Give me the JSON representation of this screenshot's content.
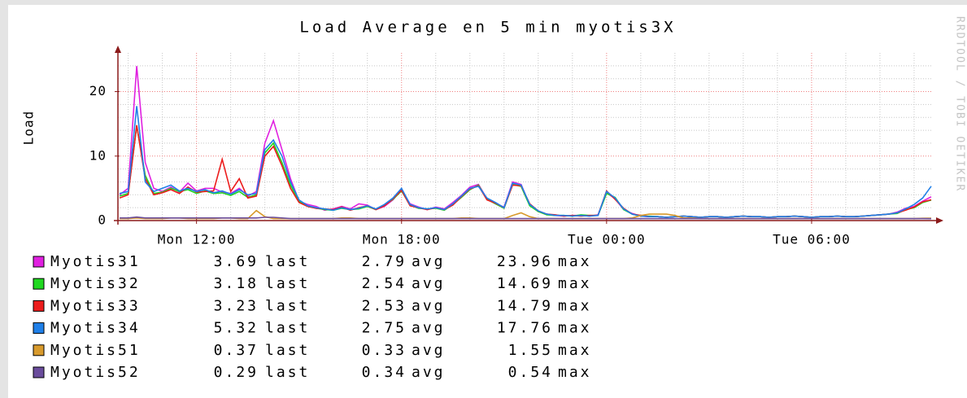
{
  "chart_data": {
    "type": "line",
    "title": "Load Average en 5 min myotis3X",
    "y_label": "Load",
    "watermark": "RRDTOOL / TOBI OETIKER",
    "xlim": [
      9.7,
      33.5
    ],
    "xticks": [
      {
        "value": 12,
        "label": "Mon 12:00"
      },
      {
        "value": 18,
        "label": "Mon 18:00"
      },
      {
        "value": 24,
        "label": "Tue 00:00"
      },
      {
        "value": 30,
        "label": "Tue 06:00"
      }
    ],
    "minor_xticks": [
      10,
      11,
      13,
      14,
      15,
      16,
      17,
      19,
      20,
      21,
      22,
      23,
      25,
      26,
      27,
      28,
      29,
      31,
      32,
      33
    ],
    "ylim": [
      0,
      26
    ],
    "yticks": [
      0,
      10,
      20
    ],
    "minor_yticks": [
      2,
      4,
      6,
      8,
      12,
      14,
      16,
      18,
      22,
      24
    ],
    "grid": true,
    "stat_labels": [
      "last",
      "avg",
      "max"
    ],
    "x": [
      9.75,
      10,
      10.25,
      10.5,
      10.75,
      11,
      11.25,
      11.5,
      11.75,
      12,
      12.25,
      12.5,
      12.75,
      13,
      13.25,
      13.5,
      13.75,
      14,
      14.25,
      14.5,
      14.75,
      15,
      15.25,
      15.5,
      15.75,
      16,
      16.25,
      16.5,
      16.75,
      17,
      17.25,
      17.5,
      17.75,
      18,
      18.25,
      18.5,
      18.75,
      19,
      19.25,
      19.5,
      19.75,
      20,
      20.25,
      20.5,
      20.75,
      21,
      21.25,
      21.5,
      21.75,
      22,
      22.25,
      22.5,
      22.75,
      23,
      23.25,
      23.5,
      23.75,
      24,
      24.25,
      24.5,
      24.75,
      25,
      25.25,
      25.5,
      25.75,
      26,
      26.25,
      26.5,
      26.75,
      27,
      27.25,
      27.5,
      27.75,
      28,
      28.25,
      28.5,
      28.75,
      29,
      29.25,
      29.5,
      29.75,
      30,
      30.25,
      30.5,
      30.75,
      31,
      31.25,
      31.5,
      31.75,
      32,
      32.25,
      32.5,
      32.75,
      33,
      33.25,
      33.5
    ],
    "series": [
      {
        "name": "Myotis31",
        "color": "#e020e0",
        "last": 3.69,
        "avg": 2.79,
        "max": 23.96,
        "values": [
          4,
          5,
          23.96,
          9,
          5,
          4.5,
          5.2,
          4.4,
          5.8,
          4.6,
          5,
          5,
          4.4,
          4.2,
          5,
          3.8,
          4.5,
          12,
          15.5,
          11,
          6.5,
          3,
          2.5,
          2.2,
          1.6,
          1.8,
          2.2,
          1.8,
          2.6,
          2.4,
          1.7,
          2.2,
          3.2,
          4.8,
          2.6,
          2.1,
          1.7,
          2.1,
          1.8,
          2.8,
          3.9,
          5.2,
          5.6,
          3.4,
          2.6,
          2.1,
          6,
          5.6,
          2.4,
          1.4,
          1,
          0.8,
          0.7,
          0.8,
          0.8,
          0.7,
          0.9,
          4.3,
          3.4,
          1.7,
          1.1,
          0.7,
          0.6,
          0.6,
          0.5,
          0.6,
          0.7,
          0.6,
          0.5,
          0.6,
          0.6,
          0.5,
          0.6,
          0.7,
          0.6,
          0.6,
          0.5,
          0.6,
          0.6,
          0.7,
          0.6,
          0.5,
          0.6,
          0.6,
          0.7,
          0.6,
          0.6,
          0.7,
          0.8,
          0.9,
          1,
          1.3,
          1.9,
          2.2,
          3,
          3.69
        ]
      },
      {
        "name": "Myotis32",
        "color": "#20d820",
        "last": 3.18,
        "avg": 2.54,
        "max": 14.69,
        "values": [
          3.8,
          4.2,
          14.69,
          7,
          4.2,
          4.4,
          5,
          4.5,
          4.8,
          4.2,
          4.6,
          4.2,
          4.3,
          3.9,
          4.5,
          3.6,
          4,
          10.5,
          12,
          9,
          5.5,
          3,
          2.2,
          1.9,
          1.7,
          1.6,
          1.9,
          1.7,
          1.8,
          2.2,
          1.7,
          2.4,
          3.3,
          4.6,
          2.4,
          1.9,
          1.8,
          1.9,
          1.6,
          2.5,
          3.6,
          4.8,
          5.5,
          3.3,
          2.6,
          1.9,
          5.6,
          5.3,
          2.3,
          1.4,
          0.9,
          0.8,
          0.8,
          0.7,
          0.9,
          0.8,
          0.8,
          4.2,
          3.6,
          1.7,
          1,
          0.7,
          0.7,
          0.6,
          0.5,
          0.6,
          0.7,
          0.6,
          0.5,
          0.6,
          0.6,
          0.5,
          0.6,
          0.7,
          0.6,
          0.6,
          0.5,
          0.6,
          0.6,
          0.7,
          0.6,
          0.5,
          0.6,
          0.6,
          0.7,
          0.6,
          0.6,
          0.7,
          0.8,
          0.9,
          1,
          1.1,
          1.7,
          2,
          2.8,
          3.18
        ]
      },
      {
        "name": "Myotis33",
        "color": "#ec1c1c",
        "last": 3.23,
        "avg": 2.53,
        "max": 14.79,
        "values": [
          3.5,
          4,
          14.79,
          6.5,
          4,
          4.3,
          4.8,
          4.2,
          5.2,
          4.4,
          4.5,
          4.6,
          9.5,
          4.5,
          6.5,
          3.5,
          3.8,
          10,
          11.5,
          8.5,
          5,
          2.8,
          2.2,
          1.9,
          1.8,
          1.7,
          2.1,
          1.6,
          2,
          2.3,
          1.7,
          2.3,
          3.4,
          4.7,
          2.3,
          2,
          1.7,
          2,
          1.7,
          2.4,
          3.7,
          4.9,
          5.4,
          3.2,
          2.7,
          2,
          5.5,
          5.4,
          2.6,
          1.5,
          1,
          0.9,
          0.7,
          0.8,
          0.7,
          0.8,
          0.8,
          4.6,
          3.3,
          1.9,
          1,
          0.8,
          0.6,
          0.6,
          0.5,
          0.6,
          0.7,
          0.6,
          0.5,
          0.6,
          0.6,
          0.5,
          0.6,
          0.7,
          0.6,
          0.6,
          0.5,
          0.6,
          0.6,
          0.7,
          0.6,
          0.5,
          0.6,
          0.6,
          0.7,
          0.6,
          0.6,
          0.7,
          0.8,
          0.9,
          1,
          1.2,
          1.6,
          2.1,
          2.9,
          3.23
        ]
      },
      {
        "name": "Myotis34",
        "color": "#1f7fe8",
        "last": 5.32,
        "avg": 2.75,
        "max": 17.76,
        "values": [
          4.2,
          4.5,
          17.76,
          6,
          4.5,
          5,
          5.5,
          4.6,
          5,
          4.5,
          4.8,
          4.3,
          4.6,
          4.1,
          4.8,
          4,
          4.2,
          11,
          12.5,
          10,
          6,
          3.2,
          2.3,
          2,
          1.8,
          1.6,
          2,
          1.7,
          1.9,
          2.3,
          1.8,
          2.5,
          3.5,
          5,
          2.5,
          2,
          1.8,
          2,
          1.7,
          2.6,
          3.8,
          5,
          5.3,
          3.5,
          2.8,
          2,
          5.8,
          5.5,
          2.5,
          1.5,
          1,
          0.8,
          0.8,
          0.7,
          0.8,
          0.7,
          0.8,
          4.5,
          3.5,
          1.8,
          1,
          0.7,
          0.6,
          0.6,
          0.5,
          0.6,
          0.7,
          0.6,
          0.5,
          0.6,
          0.6,
          0.5,
          0.6,
          0.7,
          0.6,
          0.6,
          0.5,
          0.6,
          0.6,
          0.7,
          0.6,
          0.5,
          0.6,
          0.6,
          0.7,
          0.6,
          0.6,
          0.7,
          0.8,
          0.9,
          1,
          1.2,
          1.8,
          2.5,
          3.5,
          5.32
        ]
      },
      {
        "name": "Myotis51",
        "color": "#d89a2c",
        "last": 0.37,
        "avg": 0.33,
        "max": 1.55,
        "values": [
          0.3,
          0.3,
          0.4,
          0.3,
          0.3,
          0.3,
          0.4,
          0.4,
          0.3,
          0.3,
          0.3,
          0.3,
          0.4,
          0.4,
          0.3,
          0.3,
          1.55,
          0.6,
          0.3,
          0.3,
          0.3,
          0.3,
          0.3,
          0.3,
          0.3,
          0.3,
          0.4,
          0.4,
          0.3,
          0.3,
          0.3,
          0.3,
          0.3,
          0.3,
          0.3,
          0.3,
          0.3,
          0.3,
          0.3,
          0.3,
          0.4,
          0.4,
          0.3,
          0.3,
          0.3,
          0.3,
          0.8,
          1.2,
          0.6,
          0.3,
          0.3,
          0.3,
          0.3,
          0.3,
          0.3,
          0.3,
          0.3,
          0.3,
          0.3,
          0.3,
          0.4,
          0.8,
          1,
          1,
          1,
          0.8,
          0.4,
          0.4,
          0.3,
          0.3,
          0.3,
          0.3,
          0.3,
          0.3,
          0.3,
          0.3,
          0.3,
          0.3,
          0.3,
          0.3,
          0.3,
          0.3,
          0.3,
          0.3,
          0.3,
          0.3,
          0.3,
          0.3,
          0.3,
          0.3,
          0.3,
          0.3,
          0.3,
          0.3,
          0.35,
          0.37
        ]
      },
      {
        "name": "Myotis52",
        "color": "#6a4c9c",
        "last": 0.29,
        "avg": 0.34,
        "max": 0.54,
        "values": [
          0.4,
          0.4,
          0.54,
          0.4,
          0.4,
          0.4,
          0.4,
          0.4,
          0.4,
          0.4,
          0.4,
          0.4,
          0.4,
          0.4,
          0.4,
          0.4,
          0.4,
          0.5,
          0.5,
          0.4,
          0.3,
          0.3,
          0.3,
          0.3,
          0.3,
          0.3,
          0.3,
          0.3,
          0.3,
          0.3,
          0.3,
          0.3,
          0.3,
          0.3,
          0.3,
          0.3,
          0.3,
          0.3,
          0.3,
          0.3,
          0.3,
          0.3,
          0.3,
          0.3,
          0.3,
          0.3,
          0.3,
          0.3,
          0.3,
          0.3,
          0.3,
          0.3,
          0.3,
          0.3,
          0.3,
          0.3,
          0.3,
          0.3,
          0.3,
          0.3,
          0.3,
          0.3,
          0.3,
          0.3,
          0.3,
          0.3,
          0.3,
          0.3,
          0.3,
          0.3,
          0.3,
          0.3,
          0.3,
          0.3,
          0.3,
          0.3,
          0.3,
          0.3,
          0.3,
          0.3,
          0.3,
          0.3,
          0.3,
          0.3,
          0.3,
          0.3,
          0.3,
          0.3,
          0.3,
          0.3,
          0.3,
          0.3,
          0.3,
          0.3,
          0.3,
          0.29
        ]
      }
    ]
  }
}
